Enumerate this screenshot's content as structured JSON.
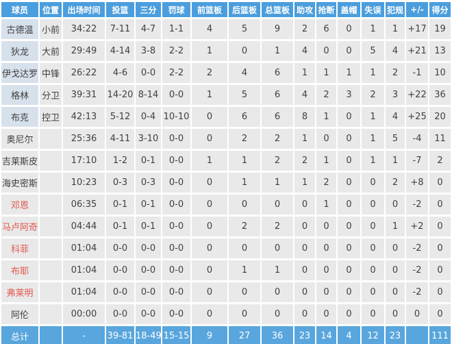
{
  "table": {
    "columns": [
      "球员",
      "位置",
      "出场时间",
      "投篮",
      "三分",
      "罚球",
      "前篮板",
      "后篮板",
      "总篮板",
      "助攻",
      "抢断",
      "盖帽",
      "失误",
      "犯规",
      "+/-",
      "得分"
    ],
    "rows": [
      {
        "name": "古德温",
        "starter": true,
        "red": false,
        "cells": [
          "小前",
          "34:22",
          "7-11",
          "4-7",
          "1-1",
          "4",
          "5",
          "9",
          "2",
          "6",
          "0",
          "1",
          "1",
          "+17",
          "19"
        ]
      },
      {
        "name": "狄龙",
        "starter": true,
        "red": false,
        "cells": [
          "大前",
          "29:49",
          "4-14",
          "3-8",
          "2-2",
          "1",
          "0",
          "1",
          "4",
          "0",
          "0",
          "5",
          "4",
          "+21",
          "13"
        ]
      },
      {
        "name": "伊戈达罗",
        "starter": true,
        "red": false,
        "cells": [
          "中锋",
          "26:22",
          "4-6",
          "0-0",
          "2-2",
          "2",
          "4",
          "6",
          "1",
          "1",
          "1",
          "1",
          "2",
          "-1",
          "10"
        ]
      },
      {
        "name": "格林",
        "starter": true,
        "red": false,
        "cells": [
          "分卫",
          "39:31",
          "14-20",
          "8-14",
          "0-0",
          "1",
          "5",
          "6",
          "4",
          "2",
          "3",
          "2",
          "3",
          "+22",
          "36"
        ]
      },
      {
        "name": "布克",
        "starter": true,
        "red": false,
        "cells": [
          "控卫",
          "42:13",
          "5-12",
          "0-4",
          "10-10",
          "0",
          "6",
          "6",
          "8",
          "1",
          "0",
          "1",
          "4",
          "+25",
          "20"
        ]
      },
      {
        "name": "奥尼尔",
        "starter": false,
        "red": false,
        "cells": [
          "",
          "25:36",
          "4-11",
          "3-10",
          "0-0",
          "0",
          "2",
          "2",
          "1",
          "0",
          "0",
          "1",
          "5",
          "-4",
          "11"
        ]
      },
      {
        "name": "吉莱斯皮",
        "starter": false,
        "red": false,
        "cells": [
          "",
          "17:10",
          "1-2",
          "0-1",
          "0-0",
          "1",
          "1",
          "2",
          "2",
          "1",
          "0",
          "1",
          "1",
          "-7",
          "2"
        ]
      },
      {
        "name": "海史密斯",
        "starter": false,
        "red": false,
        "cells": [
          "",
          "10:23",
          "0-3",
          "0-3",
          "0-0",
          "0",
          "1",
          "1",
          "1",
          "2",
          "0",
          "0",
          "2",
          "+8",
          "0"
        ]
      },
      {
        "name": "邓恩",
        "starter": false,
        "red": true,
        "cells": [
          "",
          "06:35",
          "0-1",
          "0-1",
          "0-0",
          "0",
          "0",
          "0",
          "0",
          "1",
          "0",
          "0",
          "0",
          "-2",
          "0"
        ]
      },
      {
        "name": "马卢阿奇",
        "starter": false,
        "red": true,
        "cells": [
          "",
          "04:44",
          "0-1",
          "0-1",
          "0-0",
          "0",
          "2",
          "2",
          "0",
          "0",
          "0",
          "0",
          "1",
          "+2",
          "0"
        ]
      },
      {
        "name": "科菲",
        "starter": false,
        "red": true,
        "cells": [
          "",
          "01:04",
          "0-0",
          "0-0",
          "0-0",
          "0",
          "0",
          "0",
          "0",
          "0",
          "0",
          "0",
          "0",
          "-2",
          "0"
        ]
      },
      {
        "name": "布耶",
        "starter": false,
        "red": true,
        "cells": [
          "",
          "01:04",
          "0-0",
          "0-0",
          "0-0",
          "0",
          "1",
          "1",
          "0",
          "0",
          "0",
          "0",
          "0",
          "-2",
          "0"
        ]
      },
      {
        "name": "弗莱明",
        "starter": false,
        "red": true,
        "cells": [
          "",
          "01:04",
          "0-0",
          "0-0",
          "0-0",
          "0",
          "0",
          "0",
          "0",
          "0",
          "0",
          "0",
          "0",
          "-2",
          "0"
        ]
      },
      {
        "name": "阿伦",
        "starter": false,
        "red": false,
        "cells": [
          "",
          "00:00",
          "0-0",
          "0-0",
          "0-0",
          "0",
          "0",
          "0",
          "0",
          "0",
          "0",
          "0",
          "0",
          "0",
          "0"
        ]
      }
    ],
    "total": {
      "label": "总计",
      "cells": [
        "",
        "-",
        "39-81",
        "18-49",
        "15-15",
        "9",
        "27",
        "36",
        "23",
        "14",
        "4",
        "12",
        "23",
        "",
        "111"
      ]
    }
  },
  "colors": {
    "header_bg": "#4b9edd",
    "total_bg": "#58a6dd",
    "cell_bg": "#e9e9e9",
    "starter_name_bg": "#d7e1ec",
    "red_name": "#e2574e",
    "text": "#3f3f3f",
    "header_text": "#ffffff"
  }
}
